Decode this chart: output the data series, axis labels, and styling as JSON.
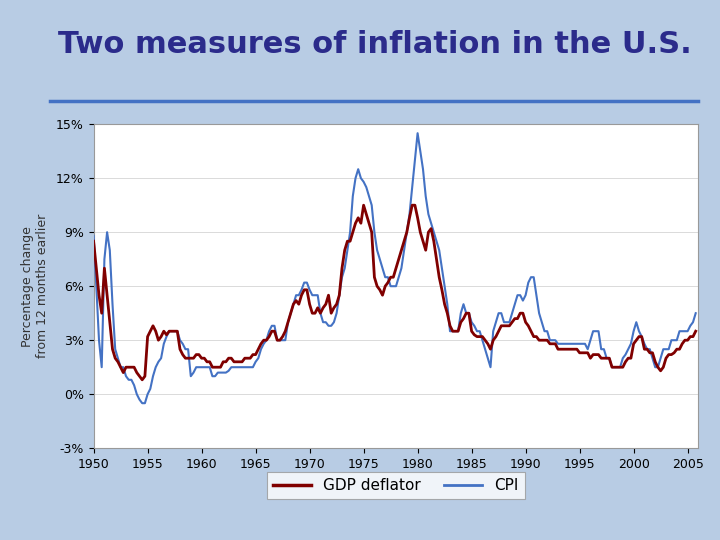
{
  "title": "Two measures of inflation in the U.S.",
  "ylabel": "Percentage change\nfrom 12 months earlier",
  "title_color": "#2B2B8B",
  "title_fontsize": 22,
  "background_color": "#FFFFFF",
  "slide_bg": "#B8CCE4",
  "ylim": [
    -3,
    15
  ],
  "yticks": [
    -3,
    0,
    3,
    6,
    9,
    12,
    15
  ],
  "ytick_labels": [
    "-3%",
    "0%",
    "3%",
    "6%",
    "9%",
    "12%",
    "15%"
  ],
  "xlim": [
    1950,
    2006
  ],
  "xticks": [
    1950,
    1955,
    1960,
    1965,
    1970,
    1975,
    1980,
    1985,
    1990,
    1995,
    2000,
    2005
  ],
  "gdp_color": "#800000",
  "cpi_color": "#4472C4",
  "gdp_label": "GDP deflator",
  "cpi_label": "CPI",
  "line_width": 1.5,
  "years": [
    1950,
    1950.25,
    1950.5,
    1950.75,
    1951,
    1951.25,
    1951.5,
    1951.75,
    1952,
    1952.25,
    1952.5,
    1952.75,
    1953,
    1953.25,
    1953.5,
    1953.75,
    1954,
    1954.25,
    1954.5,
    1954.75,
    1955,
    1955.25,
    1955.5,
    1955.75,
    1956,
    1956.25,
    1956.5,
    1956.75,
    1957,
    1957.25,
    1957.5,
    1957.75,
    1958,
    1958.25,
    1958.5,
    1958.75,
    1959,
    1959.25,
    1959.5,
    1959.75,
    1960,
    1960.25,
    1960.5,
    1960.75,
    1961,
    1961.25,
    1961.5,
    1961.75,
    1962,
    1962.25,
    1962.5,
    1962.75,
    1963,
    1963.25,
    1963.5,
    1963.75,
    1964,
    1964.25,
    1964.5,
    1964.75,
    1965,
    1965.25,
    1965.5,
    1965.75,
    1966,
    1966.25,
    1966.5,
    1966.75,
    1967,
    1967.25,
    1967.5,
    1967.75,
    1968,
    1968.25,
    1968.5,
    1968.75,
    1969,
    1969.25,
    1969.5,
    1969.75,
    1970,
    1970.25,
    1970.5,
    1970.75,
    1971,
    1971.25,
    1971.5,
    1971.75,
    1972,
    1972.25,
    1972.5,
    1972.75,
    1973,
    1973.25,
    1973.5,
    1973.75,
    1974,
    1974.25,
    1974.5,
    1974.75,
    1975,
    1975.25,
    1975.5,
    1975.75,
    1976,
    1976.25,
    1976.5,
    1976.75,
    1977,
    1977.25,
    1977.5,
    1977.75,
    1978,
    1978.25,
    1978.5,
    1978.75,
    1979,
    1979.25,
    1979.5,
    1979.75,
    1980,
    1980.25,
    1980.5,
    1980.75,
    1981,
    1981.25,
    1981.5,
    1981.75,
    1982,
    1982.25,
    1982.5,
    1982.75,
    1983,
    1983.25,
    1983.5,
    1983.75,
    1984,
    1984.25,
    1984.5,
    1984.75,
    1985,
    1985.25,
    1985.5,
    1985.75,
    1986,
    1986.25,
    1986.5,
    1986.75,
    1987,
    1987.25,
    1987.5,
    1987.75,
    1988,
    1988.25,
    1988.5,
    1988.75,
    1989,
    1989.25,
    1989.5,
    1989.75,
    1990,
    1990.25,
    1990.5,
    1990.75,
    1991,
    1991.25,
    1991.5,
    1991.75,
    1992,
    1992.25,
    1992.5,
    1992.75,
    1993,
    1993.25,
    1993.5,
    1993.75,
    1994,
    1994.25,
    1994.5,
    1994.75,
    1995,
    1995.25,
    1995.5,
    1995.75,
    1996,
    1996.25,
    1996.5,
    1996.75,
    1997,
    1997.25,
    1997.5,
    1997.75,
    1998,
    1998.25,
    1998.5,
    1998.75,
    1999,
    1999.25,
    1999.5,
    1999.75,
    2000,
    2000.25,
    2000.5,
    2000.75,
    2001,
    2001.25,
    2001.5,
    2001.75,
    2002,
    2002.25,
    2002.5,
    2002.75,
    2003,
    2003.25,
    2003.5,
    2003.75,
    2004,
    2004.25,
    2004.5,
    2004.75,
    2005,
    2005.25,
    2005.5,
    2005.75
  ],
  "gdp_deflator": [
    8.5,
    7.0,
    5.5,
    4.5,
    7.0,
    5.5,
    4.0,
    2.5,
    2.0,
    1.8,
    1.5,
    1.2,
    1.5,
    1.5,
    1.5,
    1.5,
    1.2,
    1.0,
    0.8,
    1.0,
    3.2,
    3.5,
    3.8,
    3.5,
    3.0,
    3.2,
    3.5,
    3.3,
    3.5,
    3.5,
    3.5,
    3.5,
    2.5,
    2.2,
    2.0,
    2.0,
    2.0,
    2.0,
    2.2,
    2.2,
    2.0,
    2.0,
    1.8,
    1.8,
    1.5,
    1.5,
    1.5,
    1.5,
    1.8,
    1.8,
    2.0,
    2.0,
    1.8,
    1.8,
    1.8,
    1.8,
    2.0,
    2.0,
    2.0,
    2.2,
    2.2,
    2.5,
    2.8,
    3.0,
    3.0,
    3.2,
    3.5,
    3.5,
    3.0,
    3.0,
    3.2,
    3.5,
    4.0,
    4.5,
    5.0,
    5.2,
    5.0,
    5.5,
    5.8,
    5.8,
    5.0,
    4.5,
    4.5,
    4.8,
    4.5,
    4.8,
    5.0,
    5.5,
    4.5,
    4.8,
    5.0,
    5.5,
    7.0,
    8.0,
    8.5,
    8.5,
    9.0,
    9.5,
    9.8,
    9.5,
    10.5,
    10.0,
    9.5,
    9.0,
    6.5,
    6.0,
    5.8,
    5.5,
    6.0,
    6.2,
    6.5,
    6.5,
    7.0,
    7.5,
    8.0,
    8.5,
    9.0,
    9.8,
    10.5,
    10.5,
    9.8,
    9.0,
    8.5,
    8.0,
    9.0,
    9.2,
    8.5,
    7.5,
    6.5,
    5.8,
    5.0,
    4.5,
    3.8,
    3.5,
    3.5,
    3.5,
    4.0,
    4.2,
    4.5,
    4.5,
    3.5,
    3.3,
    3.2,
    3.2,
    3.2,
    3.0,
    2.8,
    2.5,
    3.0,
    3.2,
    3.5,
    3.8,
    3.8,
    3.8,
    3.8,
    4.0,
    4.2,
    4.2,
    4.5,
    4.5,
    4.0,
    3.8,
    3.5,
    3.2,
    3.2,
    3.0,
    3.0,
    3.0,
    3.0,
    2.8,
    2.8,
    2.8,
    2.5,
    2.5,
    2.5,
    2.5,
    2.5,
    2.5,
    2.5,
    2.5,
    2.3,
    2.3,
    2.3,
    2.3,
    2.0,
    2.2,
    2.2,
    2.2,
    2.0,
    2.0,
    2.0,
    2.0,
    1.5,
    1.5,
    1.5,
    1.5,
    1.5,
    1.8,
    2.0,
    2.0,
    2.8,
    3.0,
    3.2,
    3.2,
    2.5,
    2.5,
    2.3,
    2.3,
    1.8,
    1.5,
    1.3,
    1.5,
    2.0,
    2.2,
    2.2,
    2.3,
    2.5,
    2.5,
    2.8,
    3.0,
    3.0,
    3.2,
    3.2,
    3.5
  ],
  "cpi": [
    8.8,
    6.0,
    3.0,
    1.5,
    7.5,
    9.0,
    8.0,
    5.0,
    2.5,
    2.0,
    1.5,
    1.5,
    1.0,
    0.8,
    0.8,
    0.5,
    0.0,
    -0.3,
    -0.5,
    -0.5,
    0.0,
    0.3,
    1.0,
    1.5,
    1.8,
    2.0,
    2.8,
    3.2,
    3.5,
    3.5,
    3.5,
    3.5,
    3.0,
    2.8,
    2.5,
    2.5,
    1.0,
    1.2,
    1.5,
    1.5,
    1.5,
    1.5,
    1.5,
    1.5,
    1.0,
    1.0,
    1.2,
    1.2,
    1.2,
    1.2,
    1.3,
    1.5,
    1.5,
    1.5,
    1.5,
    1.5,
    1.5,
    1.5,
    1.5,
    1.5,
    1.8,
    2.0,
    2.5,
    2.8,
    3.0,
    3.5,
    3.8,
    3.8,
    3.0,
    3.0,
    3.0,
    3.0,
    4.0,
    4.5,
    5.0,
    5.5,
    5.5,
    5.8,
    6.2,
    6.2,
    5.8,
    5.5,
    5.5,
    5.5,
    4.5,
    4.0,
    4.0,
    3.8,
    3.8,
    4.0,
    4.5,
    5.5,
    6.5,
    7.0,
    8.0,
    9.0,
    11.0,
    12.0,
    12.5,
    12.0,
    11.8,
    11.5,
    11.0,
    10.5,
    9.0,
    8.0,
    7.5,
    7.0,
    6.5,
    6.5,
    6.0,
    6.0,
    6.0,
    6.5,
    7.0,
    8.0,
    9.0,
    10.0,
    11.5,
    13.0,
    14.5,
    13.5,
    12.5,
    11.0,
    10.0,
    9.5,
    9.0,
    8.5,
    8.0,
    7.0,
    6.0,
    5.0,
    3.5,
    3.5,
    3.5,
    3.5,
    4.5,
    5.0,
    4.5,
    4.5,
    4.0,
    3.8,
    3.5,
    3.5,
    3.0,
    2.5,
    2.0,
    1.5,
    3.5,
    4.0,
    4.5,
    4.5,
    4.0,
    4.0,
    4.0,
    4.5,
    5.0,
    5.5,
    5.5,
    5.2,
    5.5,
    6.2,
    6.5,
    6.5,
    5.5,
    4.5,
    4.0,
    3.5,
    3.5,
    3.0,
    3.0,
    3.0,
    2.8,
    2.8,
    2.8,
    2.8,
    2.8,
    2.8,
    2.8,
    2.8,
    2.8,
    2.8,
    2.8,
    2.5,
    3.0,
    3.5,
    3.5,
    3.5,
    2.5,
    2.5,
    2.0,
    2.0,
    1.5,
    1.5,
    1.5,
    1.5,
    2.0,
    2.2,
    2.5,
    2.8,
    3.5,
    4.0,
    3.5,
    3.2,
    2.8,
    2.5,
    2.5,
    2.0,
    1.5,
    1.5,
    2.0,
    2.5,
    2.5,
    2.5,
    3.0,
    3.0,
    3.0,
    3.5,
    3.5,
    3.5,
    3.5,
    3.8,
    4.0,
    4.5
  ]
}
